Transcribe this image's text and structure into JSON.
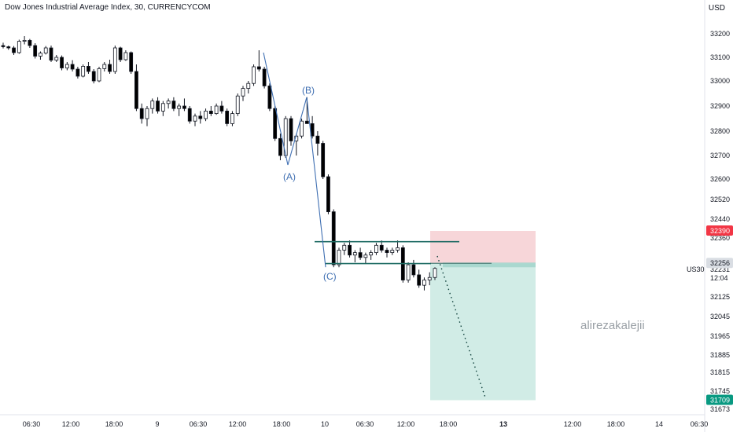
{
  "header": {
    "title": "Dow Jones Industrial Average Index, 30, CURRENCYCOM",
    "currency": "USD"
  },
  "watermark": "alirezakalejii",
  "colors": {
    "up": "#131722",
    "down": "#000000",
    "stop_zone": "#f7d6d9",
    "target_zone": "#d1ece6",
    "level_line": "#1e6b63",
    "wave": "#3f6fb2",
    "stop_badge": "#f23645",
    "target_badge": "#089981",
    "current_badge": "#d9dde3"
  },
  "chart_data": {
    "type": "candlestick",
    "y_axis": {
      "ticks": [
        "33200",
        "33100",
        "33000",
        "32900",
        "32800",
        "32700",
        "32600",
        "32520",
        "32440",
        "32360",
        "32231",
        "32125",
        "32045",
        "31965",
        "31885",
        "31815",
        "31745",
        "31673"
      ],
      "current_price_time": "12:04"
    },
    "x_axis": {
      "ticks": [
        "06:30",
        "12:00",
        "18:00",
        "9",
        "06:30",
        "12:00",
        "18:00",
        "10",
        "06:30",
        "12:00",
        "18:00",
        "13",
        "12:00",
        "18:00",
        "14",
        "06:30"
      ],
      "bold_ticks": [
        "13"
      ]
    },
    "symbol": "US30",
    "price_badges": {
      "stop_loss": "32390",
      "current": "32256",
      "take_profit": "31709"
    },
    "position": {
      "type": "short",
      "entry": 32256,
      "stop_loss": 32390,
      "take_profit": 31709
    },
    "wave_labels": [
      "(A)",
      "(B)",
      "(C)"
    ],
    "wave_points": [
      {
        "label": "start",
        "price": 33120
      },
      {
        "label": "(A)",
        "price": 32660
      },
      {
        "label": "(B)",
        "price": 32935
      },
      {
        "label": "(C)",
        "price": 32240
      }
    ],
    "range_lines": [
      32345,
      32255
    ],
    "candles": [
      [
        33150,
        33162,
        33138,
        33145
      ],
      [
        33145,
        33150,
        33132,
        33140
      ],
      [
        33140,
        33148,
        33110,
        33120
      ],
      [
        33120,
        33175,
        33115,
        33168
      ],
      [
        33168,
        33190,
        33155,
        33172
      ],
      [
        33172,
        33178,
        33140,
        33150
      ],
      [
        33150,
        33160,
        33095,
        33105
      ],
      [
        33105,
        33125,
        33090,
        33118
      ],
      [
        33118,
        33148,
        33112,
        33140
      ],
      [
        33140,
        33150,
        33080,
        33088
      ],
      [
        33088,
        33110,
        33080,
        33100
      ],
      [
        33100,
        33108,
        33045,
        33055
      ],
      [
        33055,
        33080,
        33045,
        33070
      ],
      [
        33070,
        33088,
        33040,
        33050
      ],
      [
        33050,
        33060,
        33010,
        33020
      ],
      [
        33020,
        33070,
        33015,
        33062
      ],
      [
        33062,
        33080,
        33030,
        33040
      ],
      [
        33040,
        33050,
        32990,
        33000
      ],
      [
        33000,
        33060,
        32995,
        33052
      ],
      [
        33052,
        33080,
        33040,
        33070
      ],
      [
        33070,
        33090,
        33030,
        33040
      ],
      [
        33040,
        33150,
        33030,
        33140
      ],
      [
        33140,
        33145,
        33080,
        33090
      ],
      [
        33090,
        33130,
        33085,
        33120
      ],
      [
        33120,
        33125,
        33030,
        33040
      ],
      [
        33040,
        33070,
        32880,
        32890
      ],
      [
        32890,
        32910,
        32830,
        32850
      ],
      [
        32850,
        32900,
        32820,
        32890
      ],
      [
        32890,
        32930,
        32870,
        32920
      ],
      [
        32920,
        32935,
        32870,
        32880
      ],
      [
        32880,
        32920,
        32860,
        32910
      ],
      [
        32910,
        32930,
        32890,
        32920
      ],
      [
        32920,
        32935,
        32880,
        32890
      ],
      [
        32890,
        32910,
        32860,
        32900
      ],
      [
        32900,
        32930,
        32880,
        32890
      ],
      [
        32890,
        32900,
        32830,
        32840
      ],
      [
        32840,
        32870,
        32820,
        32860
      ],
      [
        32860,
        32880,
        32830,
        32850
      ],
      [
        32850,
        32890,
        32840,
        32880
      ],
      [
        32880,
        32900,
        32860,
        32870
      ],
      [
        32870,
        32910,
        32865,
        32900
      ],
      [
        32900,
        32920,
        32870,
        32880
      ],
      [
        32880,
        32890,
        32820,
        32830
      ],
      [
        32830,
        32880,
        32820,
        32870
      ],
      [
        32870,
        32950,
        32860,
        32940
      ],
      [
        32940,
        32980,
        32920,
        32970
      ],
      [
        32970,
        33000,
        32950,
        32990
      ],
      [
        32990,
        33070,
        32980,
        33060
      ],
      [
        33060,
        33130,
        33040,
        33050
      ],
      [
        33050,
        33060,
        32970,
        32980
      ],
      [
        32980,
        32990,
        32880,
        32890
      ],
      [
        32890,
        32900,
        32760,
        32770
      ],
      [
        32770,
        32790,
        32680,
        32700
      ],
      [
        32700,
        32860,
        32690,
        32850
      ],
      [
        32850,
        32860,
        32740,
        32760
      ],
      [
        32760,
        32790,
        32700,
        32780
      ],
      [
        32780,
        32850,
        32770,
        32840
      ],
      [
        32840,
        32935,
        32830,
        32830
      ],
      [
        32830,
        32860,
        32770,
        32780
      ],
      [
        32780,
        32800,
        32700,
        32750
      ],
      [
        32750,
        32760,
        32600,
        32610
      ],
      [
        32610,
        32620,
        32460,
        32470
      ],
      [
        32470,
        32480,
        32240,
        32250
      ],
      [
        32250,
        32320,
        32240,
        32310
      ],
      [
        32310,
        32340,
        32290,
        32330
      ],
      [
        32330,
        32350,
        32280,
        32290
      ],
      [
        32290,
        32310,
        32260,
        32300
      ],
      [
        32300,
        32320,
        32270,
        32280
      ],
      [
        32280,
        32300,
        32255,
        32290
      ],
      [
        32290,
        32310,
        32270,
        32300
      ],
      [
        32300,
        32340,
        32290,
        32330
      ],
      [
        32330,
        32350,
        32300,
        32310
      ],
      [
        32310,
        32320,
        32280,
        32300
      ],
      [
        32300,
        32320,
        32290,
        32310
      ],
      [
        32310,
        32350,
        32300,
        32320
      ],
      [
        32320,
        32330,
        32180,
        32190
      ],
      [
        32190,
        32260,
        32180,
        32250
      ],
      [
        32250,
        32270,
        32200,
        32210
      ],
      [
        32210,
        32230,
        32160,
        32170
      ],
      [
        32170,
        32200,
        32150,
        32190
      ],
      [
        32190,
        32220,
        32170,
        32200
      ],
      [
        32200,
        32240,
        32190,
        32235
      ]
    ]
  }
}
